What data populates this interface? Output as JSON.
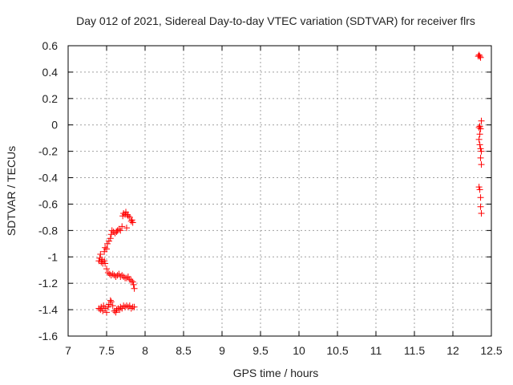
{
  "chart_data": {
    "type": "scatter",
    "title": "Day 012 of 2021, Sidereal Day-to-day VTEC variation (SDTVAR) for receiver flrs",
    "xlabel": "GPS time / hours",
    "ylabel": "SDTVAR / TECUs",
    "xlim": [
      7,
      12.5
    ],
    "ylim": [
      -1.6,
      0.6
    ],
    "xticks": [
      7,
      7.5,
      8,
      8.5,
      9,
      9.5,
      10,
      10.5,
      11,
      11.5,
      12,
      12.5
    ],
    "xtick_labels": [
      "7",
      "7.5",
      "8",
      "8.5",
      "9",
      "9.5",
      "10",
      "10.5",
      "11",
      "11.5",
      "12",
      "12.5"
    ],
    "yticks": [
      0.6,
      0.4,
      0.2,
      0,
      -0.2,
      -0.4,
      -0.6,
      -0.8,
      -1,
      -1.2,
      -1.4,
      -1.6
    ],
    "ytick_labels": [
      "0.6",
      "0.4",
      "0.2",
      "0",
      "-0.2",
      "-0.4",
      "-0.6",
      "-0.8",
      "-1",
      "-1.2",
      "-1.4",
      "-1.6"
    ],
    "grid": true,
    "marker": "plus",
    "color": "#ff0000",
    "series": [
      {
        "points": [
          [
            7.4,
            -1.39
          ],
          [
            7.42,
            -1.4
          ],
          [
            7.43,
            -1.38
          ],
          [
            7.45,
            -1.41
          ],
          [
            7.46,
            -1.37
          ],
          [
            7.48,
            -1.39
          ],
          [
            7.5,
            -1.42
          ],
          [
            7.52,
            -1.38
          ],
          [
            7.53,
            -1.36
          ],
          [
            7.55,
            -1.33
          ],
          [
            7.56,
            -1.34
          ],
          [
            7.58,
            -1.37
          ],
          [
            7.6,
            -1.41
          ],
          [
            7.62,
            -1.42
          ],
          [
            7.63,
            -1.4
          ],
          [
            7.65,
            -1.39
          ],
          [
            7.67,
            -1.4
          ],
          [
            7.68,
            -1.38
          ],
          [
            7.7,
            -1.39
          ],
          [
            7.72,
            -1.37
          ],
          [
            7.74,
            -1.38
          ],
          [
            7.76,
            -1.37
          ],
          [
            7.78,
            -1.38
          ],
          [
            7.8,
            -1.37
          ],
          [
            7.82,
            -1.39
          ],
          [
            7.84,
            -1.38
          ],
          [
            7.86,
            -1.38
          ],
          [
            7.4,
            -1.03
          ],
          [
            7.41,
            -1.01
          ],
          [
            7.42,
            -0.98
          ],
          [
            7.43,
            -1.04
          ],
          [
            7.44,
            -1.02
          ],
          [
            7.45,
            -1.05
          ],
          [
            7.47,
            -1.03
          ],
          [
            7.48,
            -1.05
          ],
          [
            7.5,
            -1.09
          ],
          [
            7.52,
            -1.12
          ],
          [
            7.54,
            -1.13
          ],
          [
            7.56,
            -1.14
          ],
          [
            7.58,
            -1.13
          ],
          [
            7.6,
            -1.14
          ],
          [
            7.62,
            -1.15
          ],
          [
            7.64,
            -1.14
          ],
          [
            7.66,
            -1.13
          ],
          [
            7.68,
            -1.15
          ],
          [
            7.7,
            -1.14
          ],
          [
            7.72,
            -1.15
          ],
          [
            7.74,
            -1.16
          ],
          [
            7.76,
            -1.16
          ],
          [
            7.78,
            -1.15
          ],
          [
            7.8,
            -1.17
          ],
          [
            7.82,
            -1.18
          ],
          [
            7.84,
            -1.19
          ],
          [
            7.85,
            -1.21
          ],
          [
            7.86,
            -1.24
          ],
          [
            7.47,
            -0.96
          ],
          [
            7.48,
            -0.93
          ],
          [
            7.5,
            -0.94
          ],
          [
            7.51,
            -0.9
          ],
          [
            7.53,
            -0.88
          ],
          [
            7.55,
            -0.86
          ],
          [
            7.56,
            -0.83
          ],
          [
            7.57,
            -0.8
          ],
          [
            7.59,
            -0.81
          ],
          [
            7.61,
            -0.82
          ],
          [
            7.63,
            -0.81
          ],
          [
            7.64,
            -0.8
          ],
          [
            7.66,
            -0.79
          ],
          [
            7.68,
            -0.8
          ],
          [
            7.7,
            -0.77
          ],
          [
            7.71,
            -0.69
          ],
          [
            7.72,
            -0.67
          ],
          [
            7.74,
            -0.68
          ],
          [
            7.75,
            -0.66
          ],
          [
            7.77,
            -0.68
          ],
          [
            7.78,
            -0.69
          ],
          [
            7.8,
            -0.7
          ],
          [
            7.82,
            -0.73
          ],
          [
            7.83,
            -0.72
          ],
          [
            7.84,
            -0.74
          ],
          [
            7.76,
            -0.78
          ],
          [
            12.33,
            0.52
          ],
          [
            12.34,
            0.53
          ],
          [
            12.35,
            0.52
          ],
          [
            12.36,
            0.51
          ],
          [
            12.34,
            -0.02
          ],
          [
            12.35,
            -0.01
          ],
          [
            12.36,
            -0.03
          ],
          [
            12.37,
            0.03
          ],
          [
            12.35,
            -0.07
          ],
          [
            12.34,
            -0.11
          ],
          [
            12.35,
            -0.15
          ],
          [
            12.36,
            -0.18
          ],
          [
            12.37,
            -0.2
          ],
          [
            12.36,
            -0.25
          ],
          [
            12.37,
            -0.3
          ],
          [
            12.34,
            -0.47
          ],
          [
            12.35,
            -0.49
          ],
          [
            12.36,
            -0.55
          ],
          [
            12.36,
            -0.62
          ],
          [
            12.37,
            -0.67
          ]
        ]
      }
    ]
  }
}
